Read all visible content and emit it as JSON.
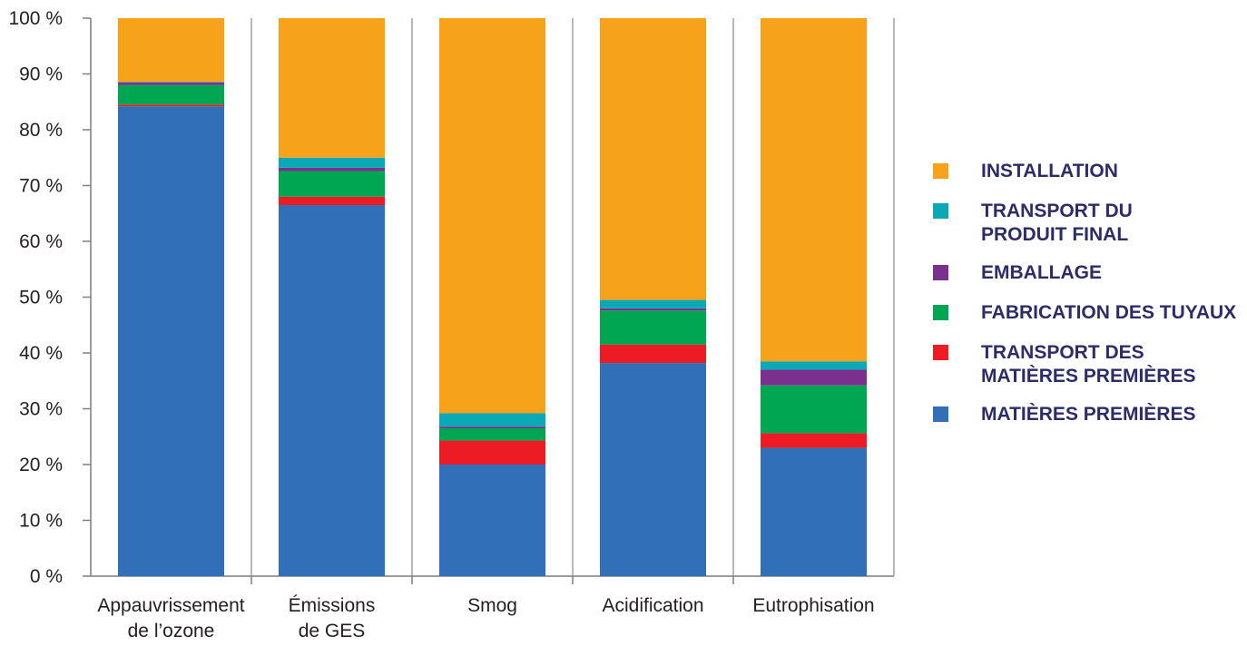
{
  "chart_data": {
    "type": "bar",
    "stacked": true,
    "categories": [
      [
        "Appauvrissement",
        "de l’ozone"
      ],
      [
        "Émissions",
        "de GES"
      ],
      [
        "Smog"
      ],
      [
        "Acidification"
      ],
      [
        "Eutrophisation"
      ]
    ],
    "ylim": [
      0,
      100
    ],
    "yticks": [
      "0 %",
      "10 %",
      "20 %",
      "30 %",
      "40 %",
      "50 %",
      "60 %",
      "70 %",
      "80 %",
      "90 %",
      "100 %"
    ],
    "grid": false,
    "legend_position": "right",
    "series": [
      {
        "name": "MATIÈRES PREMIÈRES",
        "color": "#3170b8",
        "values": [
          84.2,
          66.5,
          20.0,
          38.2,
          23.0
        ]
      },
      {
        "name": "TRANSPORT DES MATIÈRES PREMIÈRES",
        "color": "#ed1c24",
        "values": [
          0.3,
          1.5,
          4.3,
          3.3,
          2.6
        ]
      },
      {
        "name": "FABRICATION DES TUYAUX",
        "color": "#00a651",
        "values": [
          3.5,
          4.6,
          2.2,
          6.1,
          8.6
        ]
      },
      {
        "name": "EMBALLAGE",
        "color": "#7b2f8f",
        "values": [
          0.5,
          0.6,
          0.3,
          0.4,
          2.8
        ]
      },
      {
        "name": "TRANSPORT DU PRODUIT FINAL",
        "color": "#0aa9b5",
        "values": [
          0.1,
          1.8,
          2.4,
          1.5,
          1.5
        ]
      },
      {
        "name": "INSTALLATION",
        "color": "#f7a21b",
        "values": [
          11.4,
          25.0,
          70.8,
          50.5,
          61.5
        ]
      }
    ],
    "legend": [
      {
        "lines": [
          "INSTALLATION"
        ],
        "color": "#f7a21b"
      },
      {
        "lines": [
          "TRANSPORT DU",
          "PRODUIT FINAL"
        ],
        "color": "#0aa9b5"
      },
      {
        "lines": [
          "EMBALLAGE"
        ],
        "color": "#7b2f8f"
      },
      {
        "lines": [
          "FABRICATION DES TUYAUX"
        ],
        "color": "#00a651"
      },
      {
        "lines": [
          "TRANSPORT DES",
          "MATIÈRES PREMIÈRES"
        ],
        "color": "#ed1c24"
      },
      {
        "lines": [
          "MATIÈRES PREMIÈRES"
        ],
        "color": "#3170b8"
      }
    ],
    "title": "",
    "xlabel": "",
    "ylabel": ""
  }
}
